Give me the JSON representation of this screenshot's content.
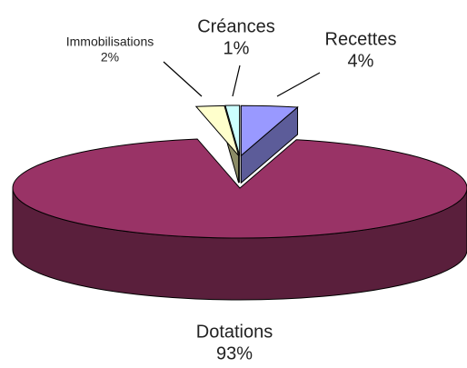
{
  "chart_data": {
    "type": "pie3d",
    "categories": [
      "Recettes",
      "Dotations",
      "Immobilisations",
      "Créances"
    ],
    "values": [
      4,
      93,
      2,
      1
    ],
    "value_labels": [
      "4%",
      "93%",
      "2%",
      "1%"
    ],
    "colors": [
      "#9999ff",
      "#993366",
      "#ffffcc",
      "#ccffff"
    ],
    "side_colors": [
      "#5c5c99",
      "#5a1f3c",
      "#8c8c66",
      "#80a0a0"
    ],
    "exploded": [
      true,
      false,
      true,
      true
    ]
  }
}
